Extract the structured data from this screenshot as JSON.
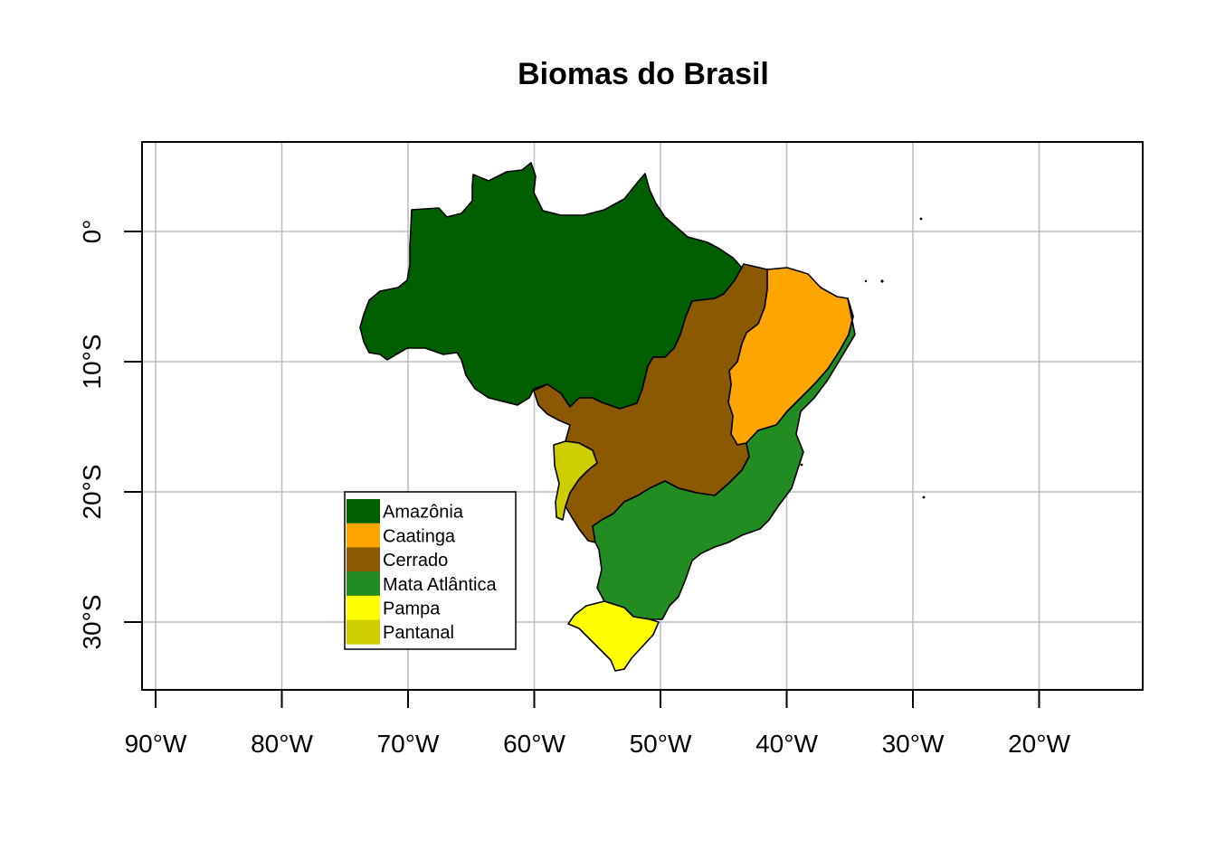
{
  "title": "Biomas do Brasil",
  "x_axis": {
    "ticks": [
      {
        "lon": -90,
        "label": "90°W"
      },
      {
        "lon": -80,
        "label": "80°W"
      },
      {
        "lon": -70,
        "label": "70°W"
      },
      {
        "lon": -60,
        "label": "60°W"
      },
      {
        "lon": -50,
        "label": "50°W"
      },
      {
        "lon": -40,
        "label": "40°W"
      },
      {
        "lon": -30,
        "label": "30°W"
      },
      {
        "lon": -20,
        "label": "20°W"
      }
    ]
  },
  "y_axis": {
    "ticks": [
      {
        "lat": 0,
        "label": "0°"
      },
      {
        "lat": -10,
        "label": "10°S"
      },
      {
        "lat": -20,
        "label": "20°S"
      },
      {
        "lat": -30,
        "label": "30°S"
      }
    ]
  },
  "grid": true,
  "legend": {
    "placement": "bottom-left",
    "items": [
      {
        "label": "Amazônia",
        "color": "#005f00"
      },
      {
        "label": "Caatinga",
        "color": "#ffa500"
      },
      {
        "label": "Cerrado",
        "color": "#8b5a00"
      },
      {
        "label": "Mata Atlântica",
        "color": "#228b22"
      },
      {
        "label": "Pampa",
        "color": "#ffff00"
      },
      {
        "label": "Pantanal",
        "color": "#cdcd00"
      }
    ]
  }
}
